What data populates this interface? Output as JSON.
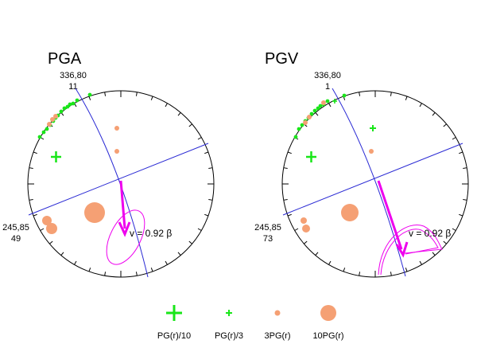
{
  "colors": {
    "green": "#19e619",
    "orange": "#f5a074",
    "magenta": "#ee00ee",
    "blue": "#2a2ad4",
    "black": "#000000"
  },
  "panels": [
    {
      "title": "PGA",
      "top_label_1": "336,80",
      "top_label_2": "11",
      "left_label_1": "245,85",
      "left_label_2": "49",
      "velocity_label": "v = 0.92 β"
    },
    {
      "title": "PGV",
      "top_label_1": "336,80",
      "top_label_2": "1",
      "left_label_1": "245,85",
      "left_label_2": "73",
      "velocity_label": "v = 0.92 β"
    }
  ],
  "legend": [
    {
      "label": "PG(r)/10",
      "marker": "large-green-cross"
    },
    {
      "label": "PG(r)/3",
      "marker": "small-green-cross"
    },
    {
      "label": "3PG(r)",
      "marker": "small-orange-dot"
    },
    {
      "label": "10PG(r)",
      "marker": "large-orange-dot"
    }
  ]
}
